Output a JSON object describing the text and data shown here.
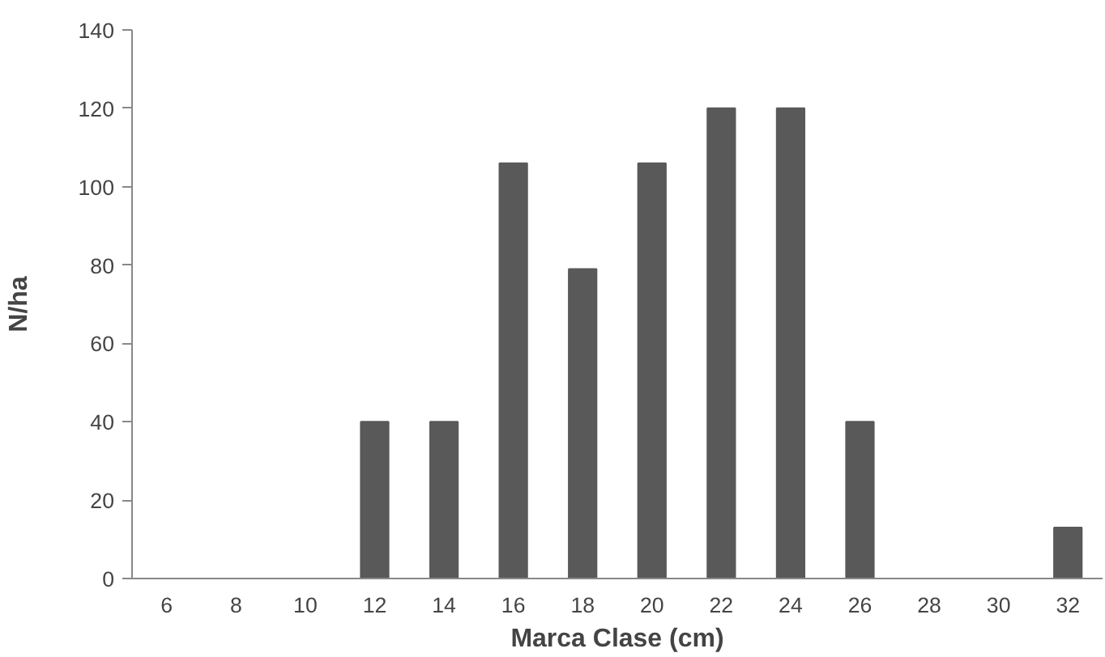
{
  "chart_data": {
    "type": "bar",
    "xlabel": "Marca Clase (cm)",
    "ylabel": "N/ha",
    "categories": [
      "6",
      "8",
      "10",
      "12",
      "14",
      "16",
      "18",
      "20",
      "22",
      "24",
      "26",
      "28",
      "30",
      "32"
    ],
    "values": [
      0,
      0,
      0,
      40,
      40,
      106,
      79,
      106,
      120,
      120,
      40,
      0,
      0,
      13
    ],
    "color": "#595959",
    "ylim": [
      0,
      140
    ],
    "yticks": [
      0,
      20,
      40,
      60,
      80,
      100,
      120,
      140
    ],
    "grid": false
  }
}
